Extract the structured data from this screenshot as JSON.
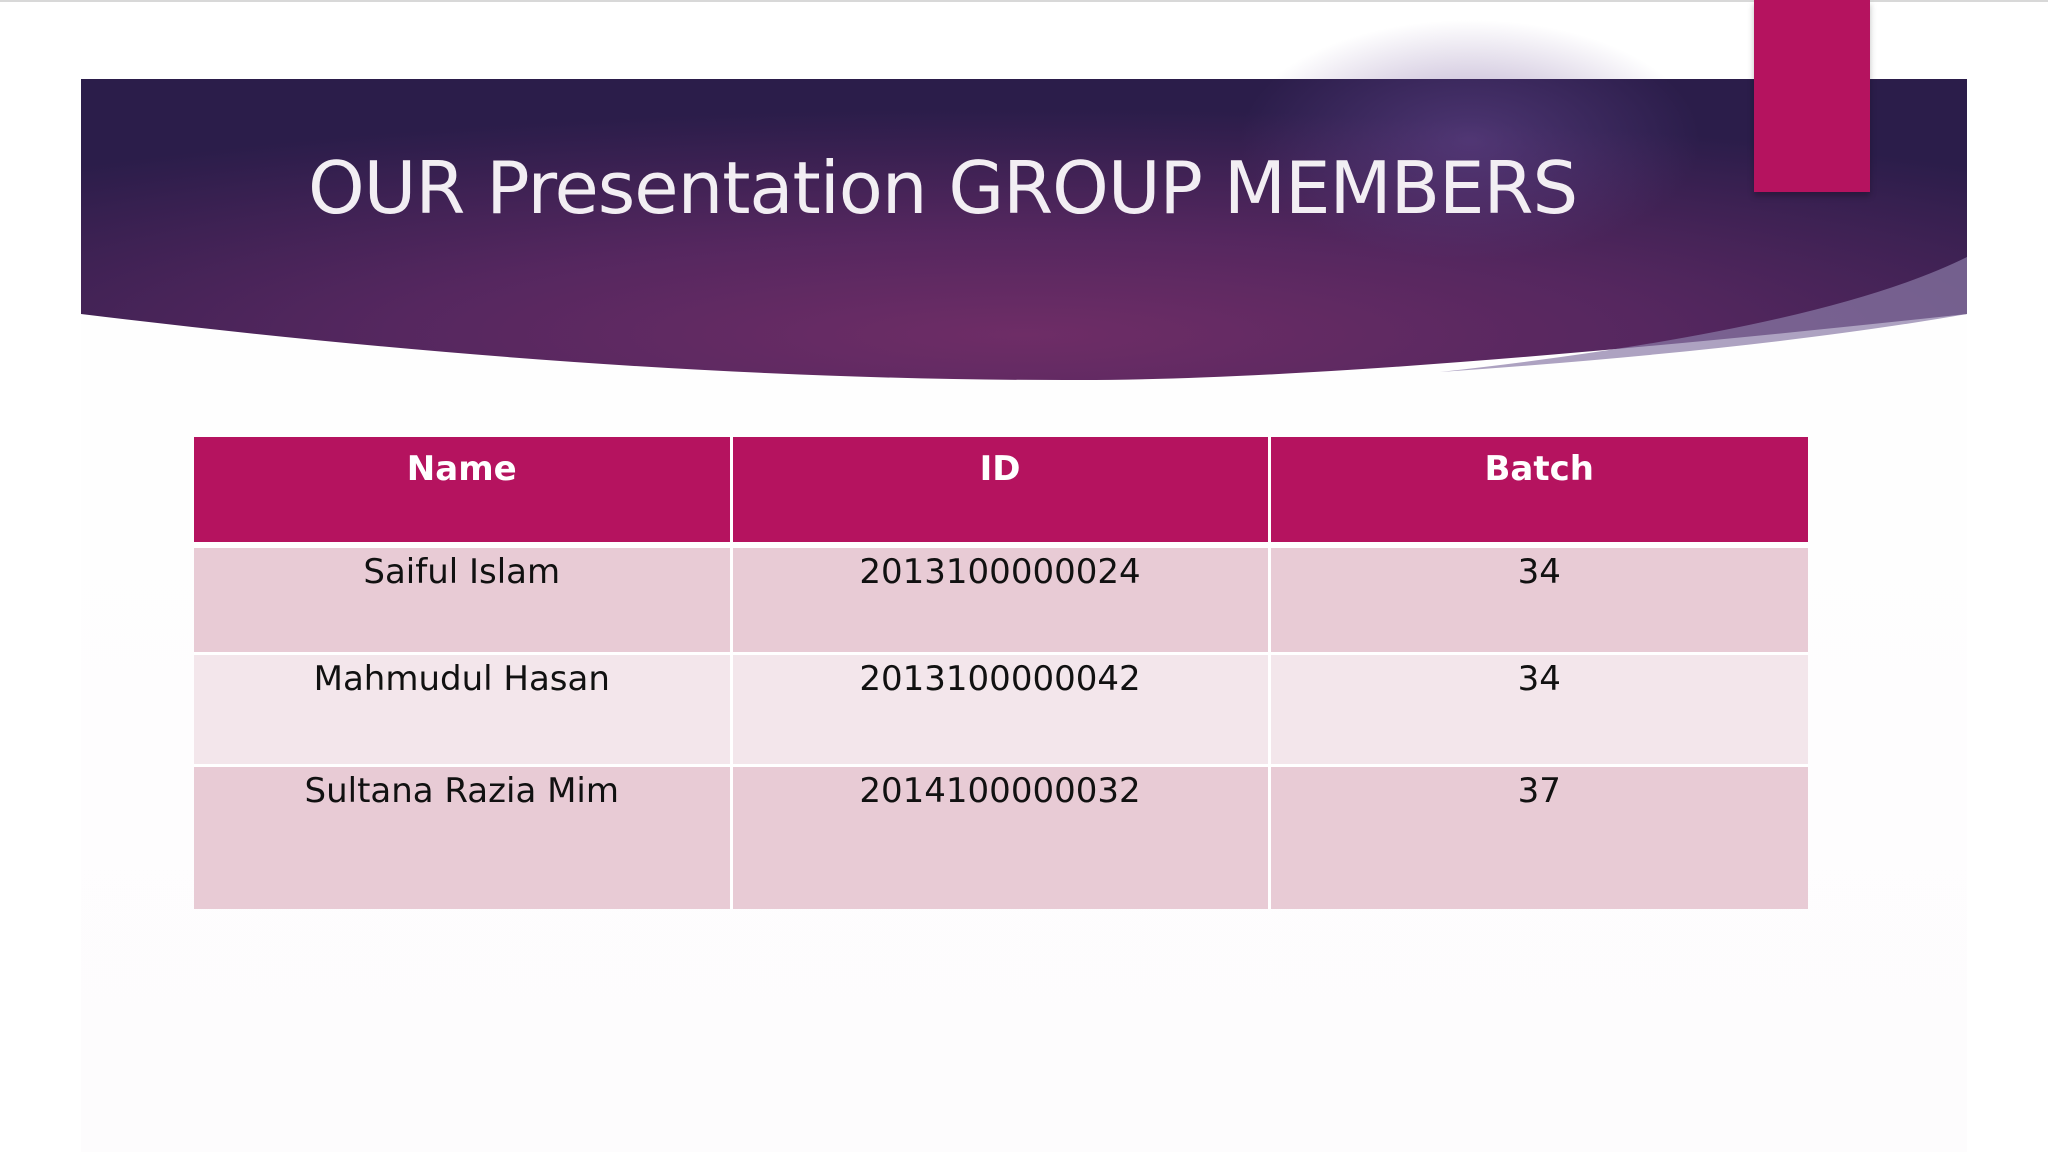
{
  "slide": {
    "title": "OUR Presentation GROUP MEMBERS",
    "colors": {
      "accent": "#b5135f",
      "banner_dark": "#2d1f4e",
      "banner_mid": "#6a2c68",
      "row_odd": "#e8cbd5",
      "row_even": "#f3e6eb"
    }
  },
  "table": {
    "headers": [
      "Name",
      "ID",
      "Batch"
    ],
    "rows": [
      [
        "Saiful Islam",
        "2013100000024",
        "34"
      ],
      [
        "Mahmudul Hasan",
        "2013100000042",
        "34"
      ],
      [
        "Sultana Razia Mim",
        "2014100000032",
        "37"
      ]
    ]
  }
}
